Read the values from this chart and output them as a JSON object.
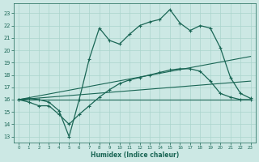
{
  "background_color": "#cce8e4",
  "grid_color": "#aad4cc",
  "line_color": "#1a6655",
  "xlabel": "Humidex (Indice chaleur)",
  "xlim": [
    -0.5,
    23.5
  ],
  "ylim": [
    12.5,
    23.8
  ],
  "yticks": [
    13,
    14,
    15,
    16,
    17,
    18,
    19,
    20,
    21,
    22,
    23
  ],
  "xticks": [
    0,
    1,
    2,
    3,
    4,
    5,
    6,
    7,
    8,
    9,
    10,
    11,
    12,
    13,
    14,
    15,
    16,
    17,
    18,
    19,
    20,
    21,
    22,
    23
  ],
  "main_line": {
    "x": [
      0,
      1,
      2,
      3,
      4,
      5,
      6,
      7,
      8,
      9,
      10,
      11,
      12,
      13,
      14,
      15,
      16,
      17,
      18,
      19,
      20,
      21,
      22,
      23
    ],
    "y": [
      16.0,
      16.1,
      16.0,
      15.8,
      15.1,
      13.0,
      16.0,
      19.3,
      21.8,
      20.8,
      20.5,
      21.3,
      22.0,
      22.3,
      22.5,
      23.3,
      22.2,
      21.6,
      22.0,
      21.8,
      20.2,
      17.8,
      16.5,
      16.1
    ]
  },
  "smooth_line": {
    "x": [
      0,
      1,
      2,
      3,
      4,
      5,
      6,
      7,
      8,
      9,
      10,
      11,
      12,
      13,
      14,
      15,
      16,
      17,
      18,
      19,
      20,
      21,
      22,
      23
    ],
    "y": [
      16.0,
      15.8,
      15.5,
      15.5,
      14.8,
      14.0,
      14.8,
      15.5,
      16.2,
      16.8,
      17.3,
      17.6,
      17.8,
      18.0,
      18.2,
      18.4,
      18.5,
      18.5,
      18.3,
      17.5,
      16.5,
      16.2,
      16.0,
      16.0
    ]
  },
  "diag_lines": [
    {
      "x": [
        0,
        23
      ],
      "y": [
        16.0,
        16.0
      ]
    },
    {
      "x": [
        0,
        23
      ],
      "y": [
        16.0,
        17.5
      ]
    },
    {
      "x": [
        0,
        23
      ],
      "y": [
        16.0,
        19.5
      ]
    }
  ]
}
